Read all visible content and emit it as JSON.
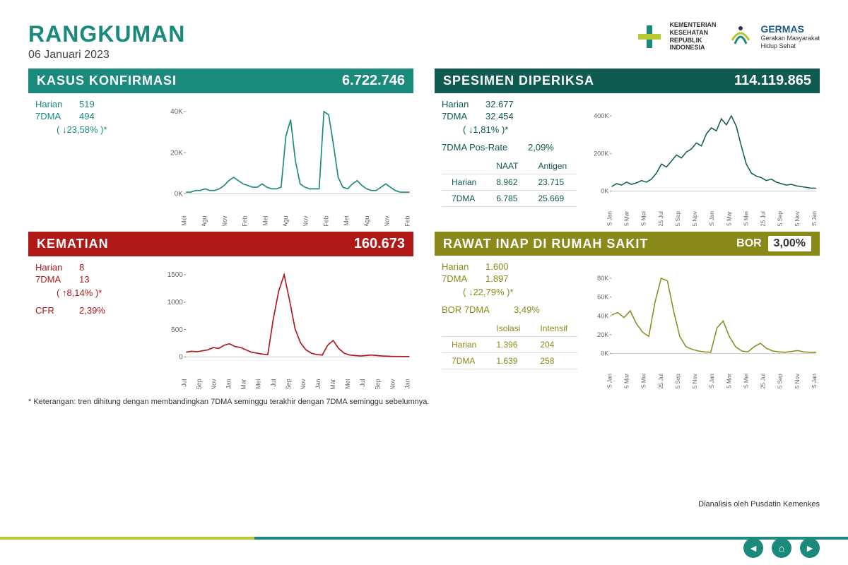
{
  "title": "RANGKUMAN",
  "date": "06 Januari 2023",
  "logos": {
    "kemenkes": "KEMENTERIAN\nKESEHATAN\nREPUBLIK\nINDONESIA",
    "germas": "GERMAS",
    "germas_sub": "Gerakan Masyarakat\nHidup Sehat"
  },
  "panels": {
    "kasus": {
      "title": "KASUS KONFIRMASI",
      "total": "6.722.746",
      "color": "#1a8a7d",
      "harian_label": "Harian",
      "harian": "519",
      "dma_label": "7DMA",
      "dma": "494",
      "delta": "↓23,58%",
      "chart": {
        "yticks": [
          "0K",
          "20K",
          "40K"
        ],
        "xticks": [
          "25 Mei",
          "25 Agu",
          "25 Nov",
          "25 Feb",
          "25 Mei",
          "25 Agu",
          "25 Nov",
          "25 Feb",
          "25 Mei",
          "25 Agu",
          "25 Nov",
          "25 Feb"
        ],
        "line_color": "#1a8a7d",
        "values": [
          1,
          1,
          2,
          2,
          3,
          2,
          2,
          3,
          5,
          8,
          10,
          8,
          6,
          5,
          4,
          4,
          6,
          4,
          3,
          3,
          4,
          35,
          45,
          20,
          6,
          4,
          3,
          3,
          3,
          50,
          48,
          30,
          10,
          4,
          3,
          6,
          8,
          5,
          3,
          2,
          2,
          4,
          6,
          4,
          2,
          1,
          1,
          1
        ]
      }
    },
    "spesimen": {
      "title": "SPESIMEN DIPERIKSA",
      "total": "114.119.865",
      "color": "#0f5a51",
      "harian_label": "Harian",
      "harian": "32.677",
      "dma_label": "7DMA",
      "dma": "32.454",
      "delta": "↓1,81%",
      "posrate_label": "7DMA Pos-Rate",
      "posrate": "2,09%",
      "table": {
        "cols": [
          "",
          "NAAT",
          "Antigen"
        ],
        "rows": [
          [
            "Harian",
            "8.962",
            "23.715"
          ],
          [
            "7DMA",
            "6.785",
            "25.669"
          ]
        ]
      },
      "chart": {
        "yticks": [
          "0K",
          "200K",
          "400K"
        ],
        "xticks": [
          "25 Jan",
          "25 Mar",
          "25 Mei",
          "25 Jul",
          "25 Sep",
          "25 Nov",
          "25 Jan",
          "25 Mar",
          "25 Mei",
          "25 Jul",
          "25 Sep",
          "25 Nov",
          "25 Jan"
        ],
        "line_color": "#0f5a51",
        "values": [
          30,
          50,
          40,
          60,
          45,
          55,
          70,
          60,
          80,
          120,
          180,
          160,
          200,
          240,
          220,
          260,
          280,
          320,
          300,
          380,
          420,
          400,
          480,
          440,
          500,
          430,
          300,
          180,
          120,
          100,
          90,
          70,
          80,
          60,
          50,
          40,
          45,
          35,
          30,
          25,
          20,
          20
        ]
      }
    },
    "kematian": {
      "title": "KEMATIAN",
      "total": "160.673",
      "color": "#b01818",
      "harian_label": "Harian",
      "harian": "8",
      "dma_label": "7DMA",
      "dma": "13",
      "delta": "↑8,14%",
      "cfr_label": "CFR",
      "cfr": "2,39%",
      "chart": {
        "yticks": [
          "0",
          "500",
          "1000",
          "1500"
        ],
        "xticks": [
          "25 Jul",
          "25 Sep",
          "25 Nov",
          "25 Jan",
          "25 Mar",
          "25 Mei",
          "25 Jul",
          "25 Sep",
          "25 Nov",
          "25 Jan",
          "25 Mar",
          "25 Mei",
          "25 Jul",
          "25 Sep",
          "25 Nov",
          "25 Jan"
        ],
        "line_color": "#b01818",
        "values": [
          100,
          120,
          110,
          130,
          150,
          200,
          180,
          250,
          280,
          220,
          200,
          150,
          100,
          80,
          60,
          50,
          800,
          1400,
          1750,
          1200,
          600,
          300,
          150,
          80,
          50,
          40,
          250,
          350,
          180,
          80,
          40,
          30,
          20,
          30,
          40,
          30,
          20,
          15,
          10,
          10,
          8,
          8
        ]
      }
    },
    "rawat": {
      "title": "RAWAT INAP DI RUMAH SAKIT",
      "bor_label": "BOR",
      "bor": "3,00%",
      "color": "#8a8a1a",
      "harian_label": "Harian",
      "harian": "1.600",
      "dma_label": "7DMA",
      "dma": "1.897",
      "delta": "↓22,79%",
      "bor7_label": "BOR 7DMA",
      "bor7": "3,49%",
      "table": {
        "cols": [
          "",
          "Isolasi",
          "Intensif"
        ],
        "rows": [
          [
            "Harian",
            "1.396",
            "204"
          ],
          [
            "7DMA",
            "1.639",
            "258"
          ]
        ]
      },
      "chart": {
        "yticks": [
          "0K",
          "20K",
          "40K",
          "60K",
          "80K"
        ],
        "xticks": [
          "25 Jan",
          "25 Mar",
          "25 Mei",
          "25 Jul",
          "25 Sep",
          "25 Nov",
          "25 Jan",
          "25 Mar",
          "25 Mei",
          "25 Jul",
          "25 Sep",
          "25 Nov",
          "25 Jan"
        ],
        "line_color": "#8a8a1a",
        "values": [
          45000,
          48000,
          42000,
          50000,
          35000,
          25000,
          20000,
          60000,
          88000,
          85000,
          50000,
          20000,
          8000,
          5000,
          3000,
          2000,
          1500,
          30000,
          38000,
          20000,
          8000,
          3000,
          2000,
          8000,
          12000,
          6000,
          3000,
          2000,
          1500,
          2500,
          3500,
          2000,
          1500,
          1500
        ]
      }
    }
  },
  "footer": "* Keterangan: tren dihitung dengan membandingkan 7DMA seminggu terakhir dengan 7DMA seminggu sebelumnya.",
  "footer_right": "Dianalisis oleh Pusdatin Kemenkes",
  "bottom_colors": [
    "#b8c832",
    "#1a8a7d"
  ],
  "nav_color": "#1a8a7d"
}
